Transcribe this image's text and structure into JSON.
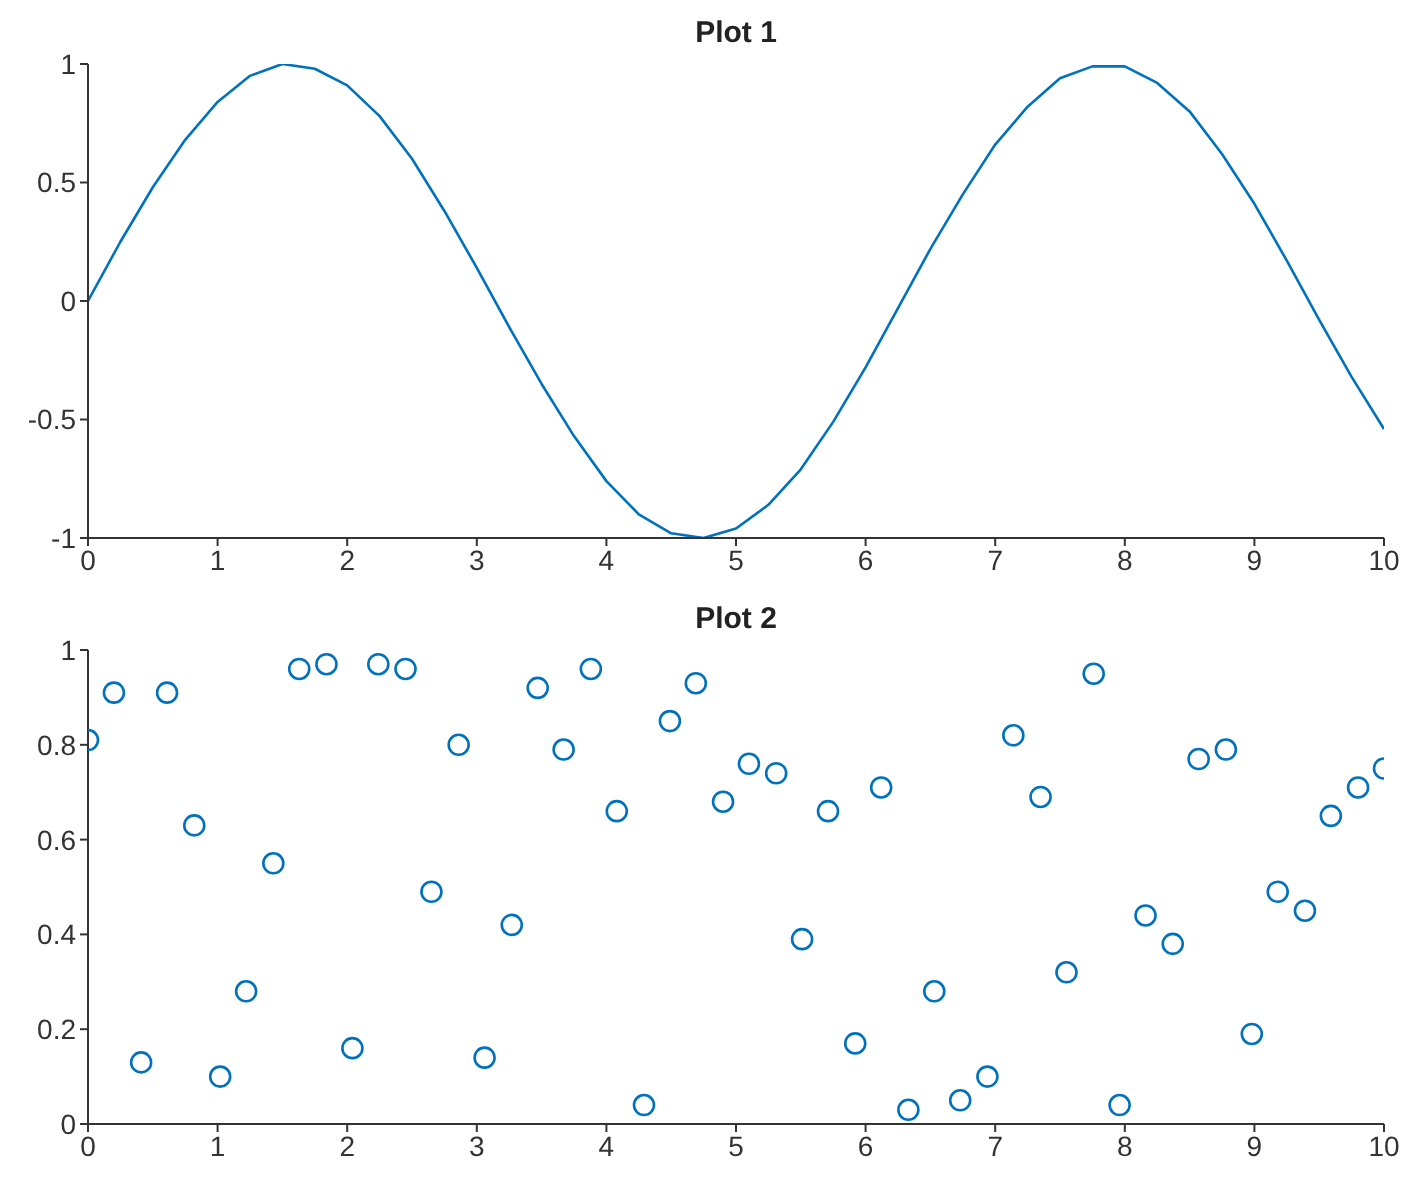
{
  "chart_data": [
    {
      "type": "line",
      "title": "Plot 1",
      "xlim": [
        0,
        10
      ],
      "xticks": [
        0,
        1,
        2,
        3,
        4,
        5,
        6,
        7,
        8,
        9,
        10
      ],
      "ylim": [
        -1,
        1
      ],
      "yticks": [
        -1,
        -0.5,
        0,
        0.5,
        1
      ],
      "marker": "none",
      "line_style": "solid",
      "series": [
        {
          "color": "#0072bd",
          "x": [
            0,
            0.25,
            0.5,
            0.75,
            1,
            1.25,
            1.5,
            1.75,
            2,
            2.25,
            2.5,
            2.75,
            3,
            3.25,
            3.5,
            3.75,
            4,
            4.25,
            4.5,
            4.75,
            5,
            5.25,
            5.5,
            5.75,
            6,
            6.25,
            6.5,
            6.75,
            7,
            7.25,
            7.5,
            7.75,
            8,
            8.25,
            8.5,
            8.75,
            9,
            9.25,
            9.5,
            9.75,
            10
          ],
          "values": [
            0,
            0.25,
            0.48,
            0.68,
            0.84,
            0.95,
            1,
            0.98,
            0.91,
            0.78,
            0.6,
            0.38,
            0.14,
            -0.11,
            -0.35,
            -0.57,
            -0.76,
            -0.9,
            -0.98,
            -1,
            -0.96,
            -0.86,
            -0.71,
            -0.51,
            -0.28,
            -0.03,
            0.22,
            0.45,
            0.66,
            0.82,
            0.94,
            0.99,
            0.99,
            0.92,
            0.8,
            0.62,
            0.41,
            0.17,
            -0.08,
            -0.32,
            -0.54
          ]
        }
      ]
    },
    {
      "type": "scatter",
      "title": "Plot 2",
      "xlim": [
        0,
        10
      ],
      "xticks": [
        0,
        1,
        2,
        3,
        4,
        5,
        6,
        7,
        8,
        9,
        10
      ],
      "ylim": [
        0,
        1
      ],
      "yticks": [
        0,
        0.2,
        0.4,
        0.6,
        0.8,
        1
      ],
      "marker": "circle",
      "series": [
        {
          "color": "#0072bd",
          "x": [
            0,
            0.2,
            0.41,
            0.61,
            0.82,
            1.02,
            1.22,
            1.43,
            1.63,
            1.84,
            2.04,
            2.24,
            2.45,
            2.65,
            2.86,
            3.06,
            3.27,
            3.47,
            3.67,
            3.88,
            4.08,
            4.29,
            4.49,
            4.69,
            4.9,
            5.1,
            5.31,
            5.51,
            5.71,
            5.92,
            6.12,
            6.33,
            6.53,
            6.73,
            6.94,
            7.14,
            7.35,
            7.55,
            7.76,
            7.96,
            8.16,
            8.37,
            8.57,
            8.78,
            8.98,
            9.18,
            9.39,
            9.59,
            9.8,
            10
          ],
          "values": [
            0.81,
            0.91,
            0.13,
            0.91,
            0.63,
            0.1,
            0.28,
            0.55,
            0.96,
            0.97,
            0.16,
            0.97,
            0.96,
            0.49,
            0.8,
            0.14,
            0.42,
            0.92,
            0.79,
            0.96,
            0.66,
            0.04,
            0.85,
            0.93,
            0.68,
            0.76,
            0.74,
            0.39,
            0.66,
            0.17,
            0.71,
            0.03,
            0.28,
            0.05,
            0.1,
            0.82,
            0.69,
            0.32,
            0.95,
            0.04,
            0.44,
            0.38,
            0.77,
            0.79,
            0.19,
            0.49,
            0.45,
            0.65,
            0.71,
            0.75
          ]
        }
      ]
    }
  ]
}
